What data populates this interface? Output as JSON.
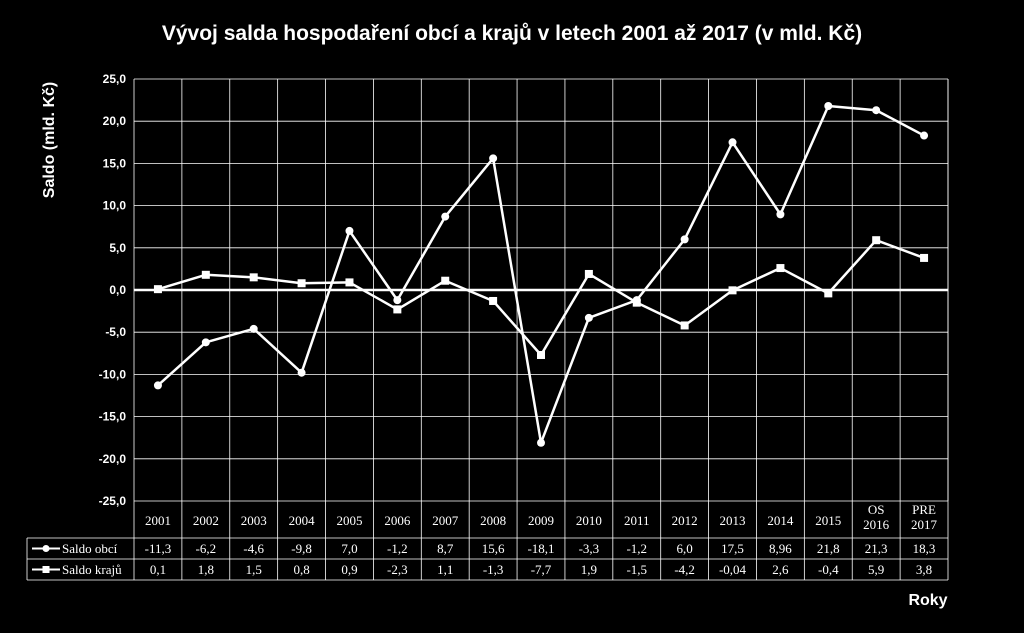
{
  "chart_data": {
    "type": "line",
    "title": "Vývoj salda hospodaření obcí a krajů v letech 2001 až 2017 (v mld. Kč)",
    "xlabel": "Roky",
    "ylabel": "Saldo (mld. Kč)",
    "ylim": [
      -25,
      25
    ],
    "yticks": [
      "25,0",
      "20,0",
      "15,0",
      "10,0",
      "5,0",
      "0,0",
      "-5,0",
      "-10,0",
      "-15,0",
      "-20,0",
      "-25,0"
    ],
    "grid": true,
    "legend": "data-table",
    "categories": [
      [
        "2001"
      ],
      [
        "2002"
      ],
      [
        "2003"
      ],
      [
        "2004"
      ],
      [
        "2005"
      ],
      [
        "2006"
      ],
      [
        "2007"
      ],
      [
        "2008"
      ],
      [
        "2009"
      ],
      [
        "2010"
      ],
      [
        "2011"
      ],
      [
        "2012"
      ],
      [
        "2013"
      ],
      [
        "2014"
      ],
      [
        "2015"
      ],
      [
        "OS",
        "2016"
      ],
      [
        "PRE",
        "2017"
      ]
    ],
    "series": [
      {
        "name": "Saldo obcí",
        "marker": "circle",
        "values": [
          -11.3,
          -6.2,
          -4.6,
          -9.8,
          7.0,
          -1.2,
          8.7,
          15.6,
          -18.1,
          -3.3,
          -1.2,
          6.0,
          17.5,
          8.96,
          21.8,
          21.3,
          18.3
        ],
        "labels": [
          "-11,3",
          "-6,2",
          "-4,6",
          "-9,8",
          "7,0",
          "-1,2",
          "8,7",
          "15,6",
          "-18,1",
          "-3,3",
          "-1,2",
          "6,0",
          "17,5",
          "8,96",
          "21,8",
          "21,3",
          "18,3"
        ]
      },
      {
        "name": "Saldo krajů",
        "marker": "square",
        "values": [
          0.1,
          1.8,
          1.5,
          0.8,
          0.9,
          -2.3,
          1.1,
          -1.3,
          -7.7,
          1.9,
          -1.5,
          -4.2,
          -0.04,
          2.6,
          -0.4,
          5.9,
          3.8
        ],
        "labels": [
          "0,1",
          "1,8",
          "1,5",
          "0,8",
          "0,9",
          "-2,3",
          "1,1",
          "-1,3",
          "-7,7",
          "1,9",
          "-1,5",
          "-4,2",
          "-0,04",
          "2,6",
          "-0,4",
          "5,9",
          "3,8"
        ]
      }
    ],
    "colors": {
      "background": "#000000",
      "line": "#ffffff",
      "grid": "#ffffff"
    }
  }
}
